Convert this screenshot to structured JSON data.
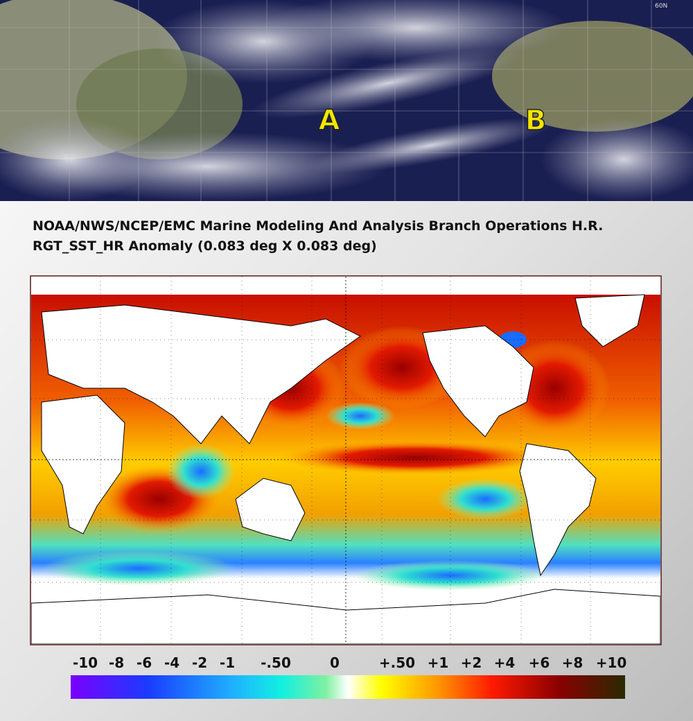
{
  "satellite": {
    "corner_label": "60N",
    "markers": [
      "A",
      "B"
    ]
  },
  "map": {
    "title": [
      "NOAA/NWS/NCEP/EMC Marine Modeling And Analysis Branch Operations H.R.",
      "RGT_SST_HR Anomaly (0.083 deg X 0.083 deg)"
    ]
  },
  "colorbar": {
    "labels": [
      "-10",
      "-8",
      "-6",
      "-4",
      "-2",
      "-1",
      "-.50",
      "0",
      "+.50",
      "+1",
      "+2",
      "+4",
      "+6",
      "+8",
      "+10"
    ]
  }
}
